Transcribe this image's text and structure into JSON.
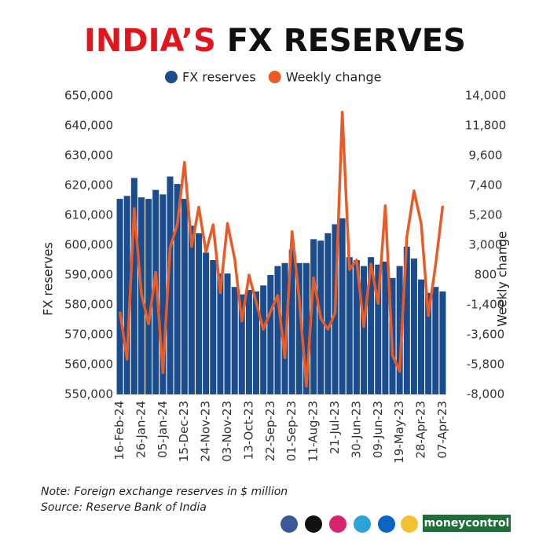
{
  "chart_data": {
    "type": "bar",
    "title_highlight": "INDIA’S",
    "title": "FX RESERVES",
    "ylabel": "FX reserves",
    "y2label": "Weekly change",
    "categories": [
      "16-Feb-24",
      null,
      null,
      "26-Jan-24",
      null,
      null,
      "05-Jan-24",
      null,
      null,
      "15-Dec-23",
      null,
      null,
      "24-Nov-23",
      null,
      null,
      "03-Nov-23",
      null,
      null,
      "13-Oct-23",
      null,
      null,
      "22-Sep-23",
      null,
      null,
      "01-Sep-23",
      null,
      null,
      "11-Aug-23",
      null,
      null,
      "21-Jul-23",
      null,
      null,
      "30-Jun-23",
      null,
      null,
      "09-Jun-23",
      null,
      null,
      "19-May-23",
      null,
      null,
      "28-Apr-23",
      null,
      null,
      "07-Apr-23"
    ],
    "series": [
      {
        "name": "FX reserves",
        "color": "#1b4d8e",
        "values": [
          615500,
          616500,
          622500,
          616000,
          615500,
          618500,
          617000,
          623000,
          620500,
          615500,
          606500,
          604000,
          597500,
          595000,
          590500,
          590500,
          586000,
          583500,
          585000,
          584500,
          586500,
          590000,
          593000,
          594000,
          598500,
          594000,
          594000,
          602000,
          601500,
          604000,
          607000,
          609000,
          596000,
          595000,
          593000,
          596000,
          593500,
          594500,
          589000,
          593000,
          599500,
          595500,
          588500,
          584000,
          586000,
          584500
        ]
      },
      {
        "name": "Weekly change",
        "color": "#e85a26",
        "type": "line",
        "axis": "y2",
        "values": [
          -1900,
          -5400,
          5700,
          -600,
          -2800,
          1000,
          -6400,
          2800,
          4500,
          9100,
          2900,
          5800,
          2500,
          4500,
          -500,
          4600,
          2000,
          -2600,
          800,
          -1200,
          -3200,
          -1900,
          -700,
          -5300,
          4000,
          -900,
          -7400,
          600,
          -2400,
          -3200,
          -2000,
          12800,
          1200,
          1900,
          -3000,
          1600,
          -1300,
          5900,
          -5100,
          -6300,
          3600,
          7000,
          4600,
          -2200,
          1500,
          5900
        ]
      }
    ],
    "ylim": [
      550000,
      650000
    ],
    "yticks": [
      {
        "value": 550000,
        "label": "550,000"
      },
      {
        "value": 560000,
        "label": "560,000"
      },
      {
        "value": 570000,
        "label": "570,000"
      },
      {
        "value": 580000,
        "label": "580,000"
      },
      {
        "value": 590000,
        "label": "590,000"
      },
      {
        "value": 600000,
        "label": "600,000"
      },
      {
        "value": 610000,
        "label": "610,000"
      },
      {
        "value": 620000,
        "label": "620,000"
      },
      {
        "value": 630000,
        "label": "630,000"
      },
      {
        "value": 640000,
        "label": "640,000"
      },
      {
        "value": 650000,
        "label": "650,000"
      }
    ],
    "y2lim": [
      -8000,
      14000
    ],
    "y2ticks": [
      {
        "value": -8000,
        "label": "-8,000"
      },
      {
        "value": -5800,
        "label": "-5,800"
      },
      {
        "value": -3600,
        "label": "-3,600"
      },
      {
        "value": -1400,
        "label": "-1,400"
      },
      800,
      {
        "value": 3000,
        "label": "3,000"
      },
      {
        "value": 5200,
        "label": "5,200"
      },
      {
        "value": 7400,
        "label": "7,400"
      },
      {
        "value": 9600,
        "label": "9,600"
      },
      {
        "value": 11800,
        "label": "11,800"
      },
      {
        "value": 14000,
        "label": "14,000"
      }
    ],
    "note": "Note: Foreign exchange reserves in $ million",
    "source": "Source: Reserve Bank of India",
    "brand": "moneycontrol"
  }
}
